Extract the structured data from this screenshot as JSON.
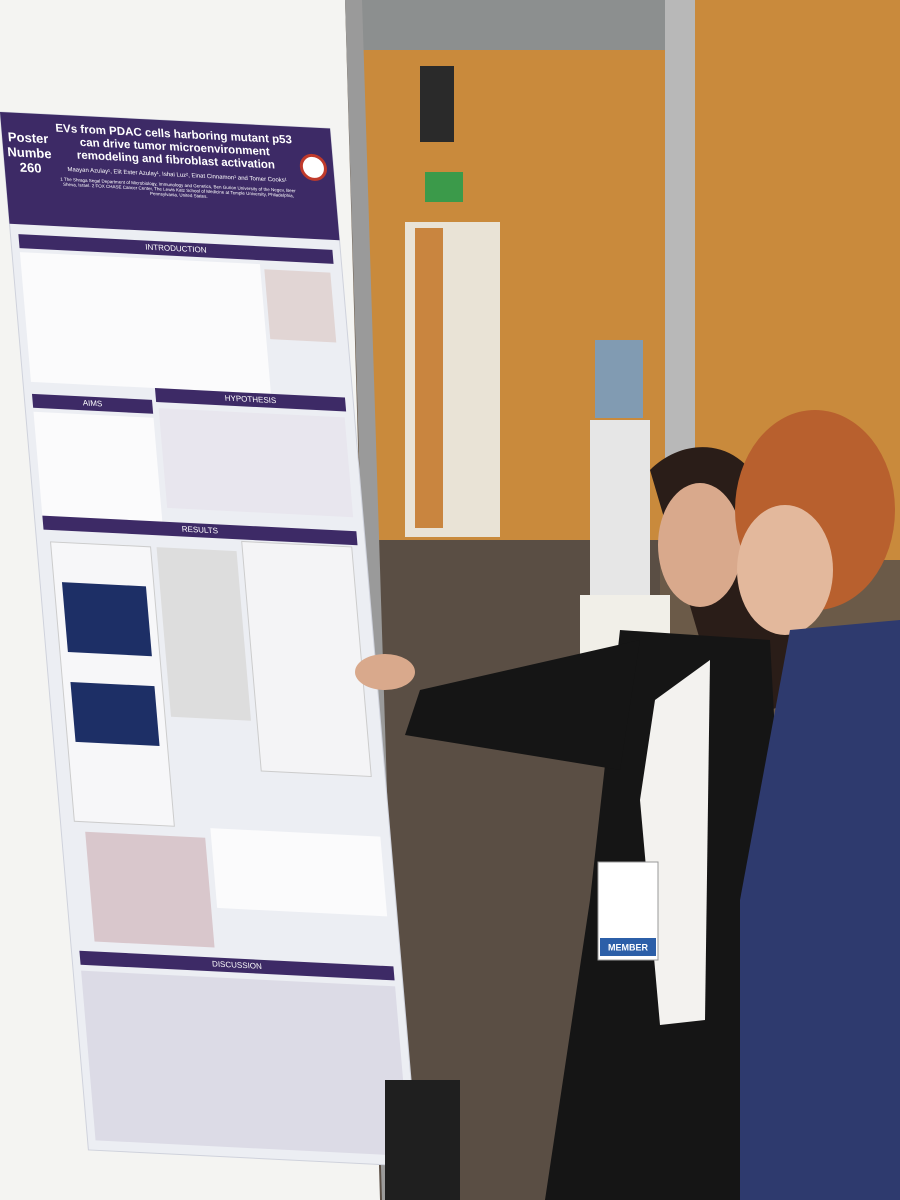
{
  "poster": {
    "poster_label": "Poster Number",
    "poster_number": 260,
    "title": "EVs from PDAC cells harboring mutant p53 can drive tumor microenvironment remodeling and fibroblast activation",
    "authors": "Maayan Azulay¹, Elit Ester Azulay¹, Ishai Luz², Einat Cinnamon¹ and Tomer Cooks¹",
    "affiliations": "1 The Shraga Segal Department of Microbiology, Immunology and Genetics, Ben Gurion University of the Negev, Beer Sheva, Israel. 2 FOX CHASE Cancer Center, The Lewis Katz School of Medicine at Temple University, Philadelphia, Pennsylvania, United States.",
    "sections": [
      "INTRODUCTION",
      "AIMS",
      "HYPOTHESIS",
      "RESULTS",
      "DISCUSSION"
    ]
  },
  "badge": "MEMBER"
}
